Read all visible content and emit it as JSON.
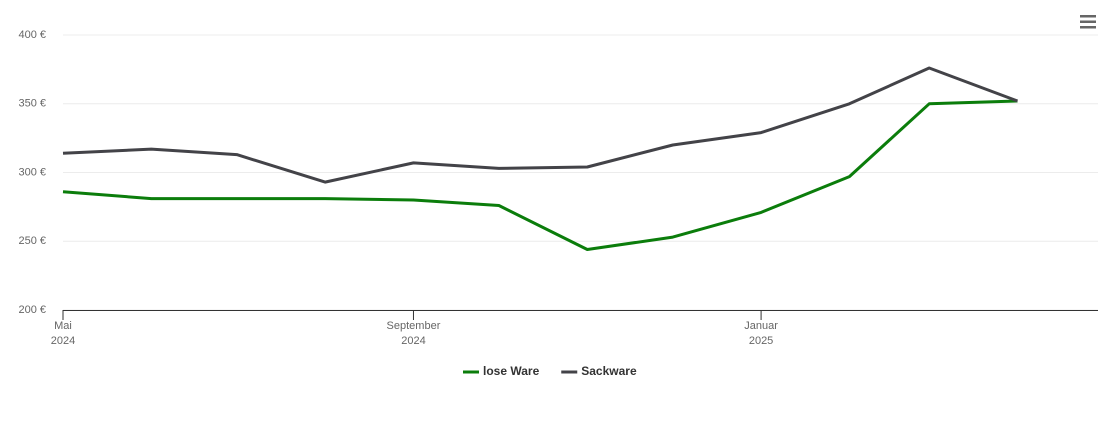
{
  "chart_data": {
    "type": "line",
    "x": [
      "2024-05",
      "2024-06",
      "2024-07",
      "2024-08",
      "2024-09",
      "2024-10",
      "2024-11",
      "2024-12",
      "2025-01",
      "2025-02",
      "2025-03",
      "2025-04"
    ],
    "series": [
      {
        "name": "lose Ware",
        "color": "#0b7d0b",
        "values": [
          286,
          281,
          281,
          281,
          280,
          276,
          244,
          253,
          271,
          297,
          350,
          352
        ]
      },
      {
        "name": "Sackware",
        "color": "#434348",
        "values": [
          314,
          317,
          313,
          293,
          307,
          303,
          304,
          320,
          329,
          350,
          376,
          352
        ]
      }
    ],
    "xlim": [
      "2024-05",
      "2025-05"
    ],
    "xticks": [
      {
        "value": "2024-05",
        "label": [
          "Mai",
          "2024"
        ]
      },
      {
        "value": "2024-09",
        "label": [
          "September",
          "2024"
        ]
      },
      {
        "value": "2025-01",
        "label": [
          "Januar",
          "2025"
        ]
      }
    ],
    "ylim": [
      200,
      400
    ],
    "yticks": [
      {
        "value": 200,
        "label": "200 €"
      },
      {
        "value": 250,
        "label": "250 €"
      },
      {
        "value": 300,
        "label": "300 €"
      },
      {
        "value": 350,
        "label": "350 €"
      },
      {
        "value": 400,
        "label": "400 €"
      }
    ],
    "grid": true,
    "legend": "bottom"
  }
}
